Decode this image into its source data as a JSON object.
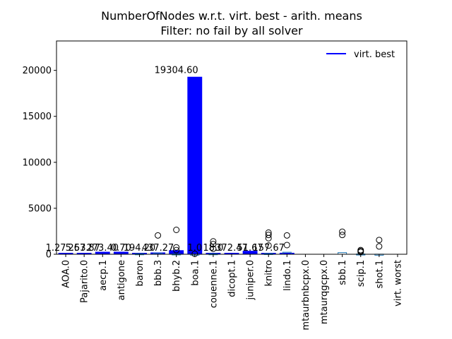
{
  "chart_data": {
    "type": "bar",
    "title_line1": "NumberOfNodes w.r.t. virt. best - arith. means",
    "title_line2": "Filter: no fail by all solver",
    "xlabel": "",
    "ylabel": "",
    "ylim": [
      0,
      23200
    ],
    "yticks": [
      0,
      5000,
      10000,
      15000,
      20000
    ],
    "ytick_labels": [
      "0",
      "5000",
      "10000",
      "15000",
      "20000"
    ],
    "legend": {
      "label": "virt. best",
      "placement": "top-right",
      "color": "#0000ff"
    },
    "bar_color": "#0000ff",
    "box_color": "#1f77b4",
    "categories": [
      "AOA.0",
      "Pajarito.0",
      "aecp.1",
      "antigone",
      "baron",
      "bbb.3",
      "bhyb.2",
      "boa.1",
      "couenne.1",
      "dicopt.1",
      "juniper.0",
      "knitro",
      "lindo.1",
      "mtaurbnbcpx.0",
      "mtaurqgcpx.0",
      "sbb.1",
      "scip.1",
      "shot.1",
      "virt. worst"
    ],
    "values": [
      1.27,
      5.53,
      267.87,
      273.4,
      0.7,
      194.2,
      437.27,
      19304.6,
      1.0,
      18.0,
      372.47,
      51.67,
      157.67,
      0,
      0,
      0,
      0,
      0,
      0
    ],
    "bar_labels": [
      "1.27",
      "5.53",
      "267.87",
      "273.40",
      "0.70",
      "194.20",
      "437.27",
      "19304.60",
      "1.0",
      "18.0",
      "372.47",
      "51.67",
      "157.67",
      "",
      "",
      "",
      "",
      "",
      ""
    ],
    "bar_label_categories": [
      "AOA.0",
      "AOA.0",
      "Pajarito.0",
      "aecp.1",
      "antigone",
      "baron",
      "bbb.3",
      "bhyb.2",
      "boa.1",
      "couenne.1",
      "dicopt.1",
      "juniper.0",
      "knitro",
      "",
      "",
      "",
      "",
      "",
      ""
    ],
    "boxes": [
      {
        "category": "baron",
        "q1": 0,
        "q3": 60,
        "outliers": []
      },
      {
        "category": "bbb.3",
        "q1": 0,
        "q3": 120,
        "outliers": [
          2050
        ]
      },
      {
        "category": "bhyb.2",
        "q1": 0,
        "q3": 40,
        "outliers": [
          2650,
          750,
          450
        ]
      },
      {
        "category": "boa.1",
        "q1": 0,
        "q3": 10,
        "outliers": [
          40
        ]
      },
      {
        "category": "couenne.1",
        "q1": 0,
        "q3": 60,
        "outliers": [
          1400,
          1100,
          600
        ]
      },
      {
        "category": "knitro",
        "q1": 0,
        "q3": 80,
        "outliers": [
          2350,
          2100,
          1750,
          950
        ]
      },
      {
        "category": "lindo.1",
        "q1": 0,
        "q3": 220,
        "outliers": [
          2050,
          1000
        ]
      },
      {
        "category": "sbb.1",
        "q1": 0,
        "q3": 180,
        "outliers": [
          2450,
          2100
        ]
      },
      {
        "category": "scip.1",
        "q1": 0,
        "q3": 30,
        "outliers": [
          450,
          350,
          250
        ]
      },
      {
        "category": "shot.1",
        "q1": 0,
        "q3": 10,
        "outliers": [
          1550,
          850
        ]
      }
    ]
  }
}
